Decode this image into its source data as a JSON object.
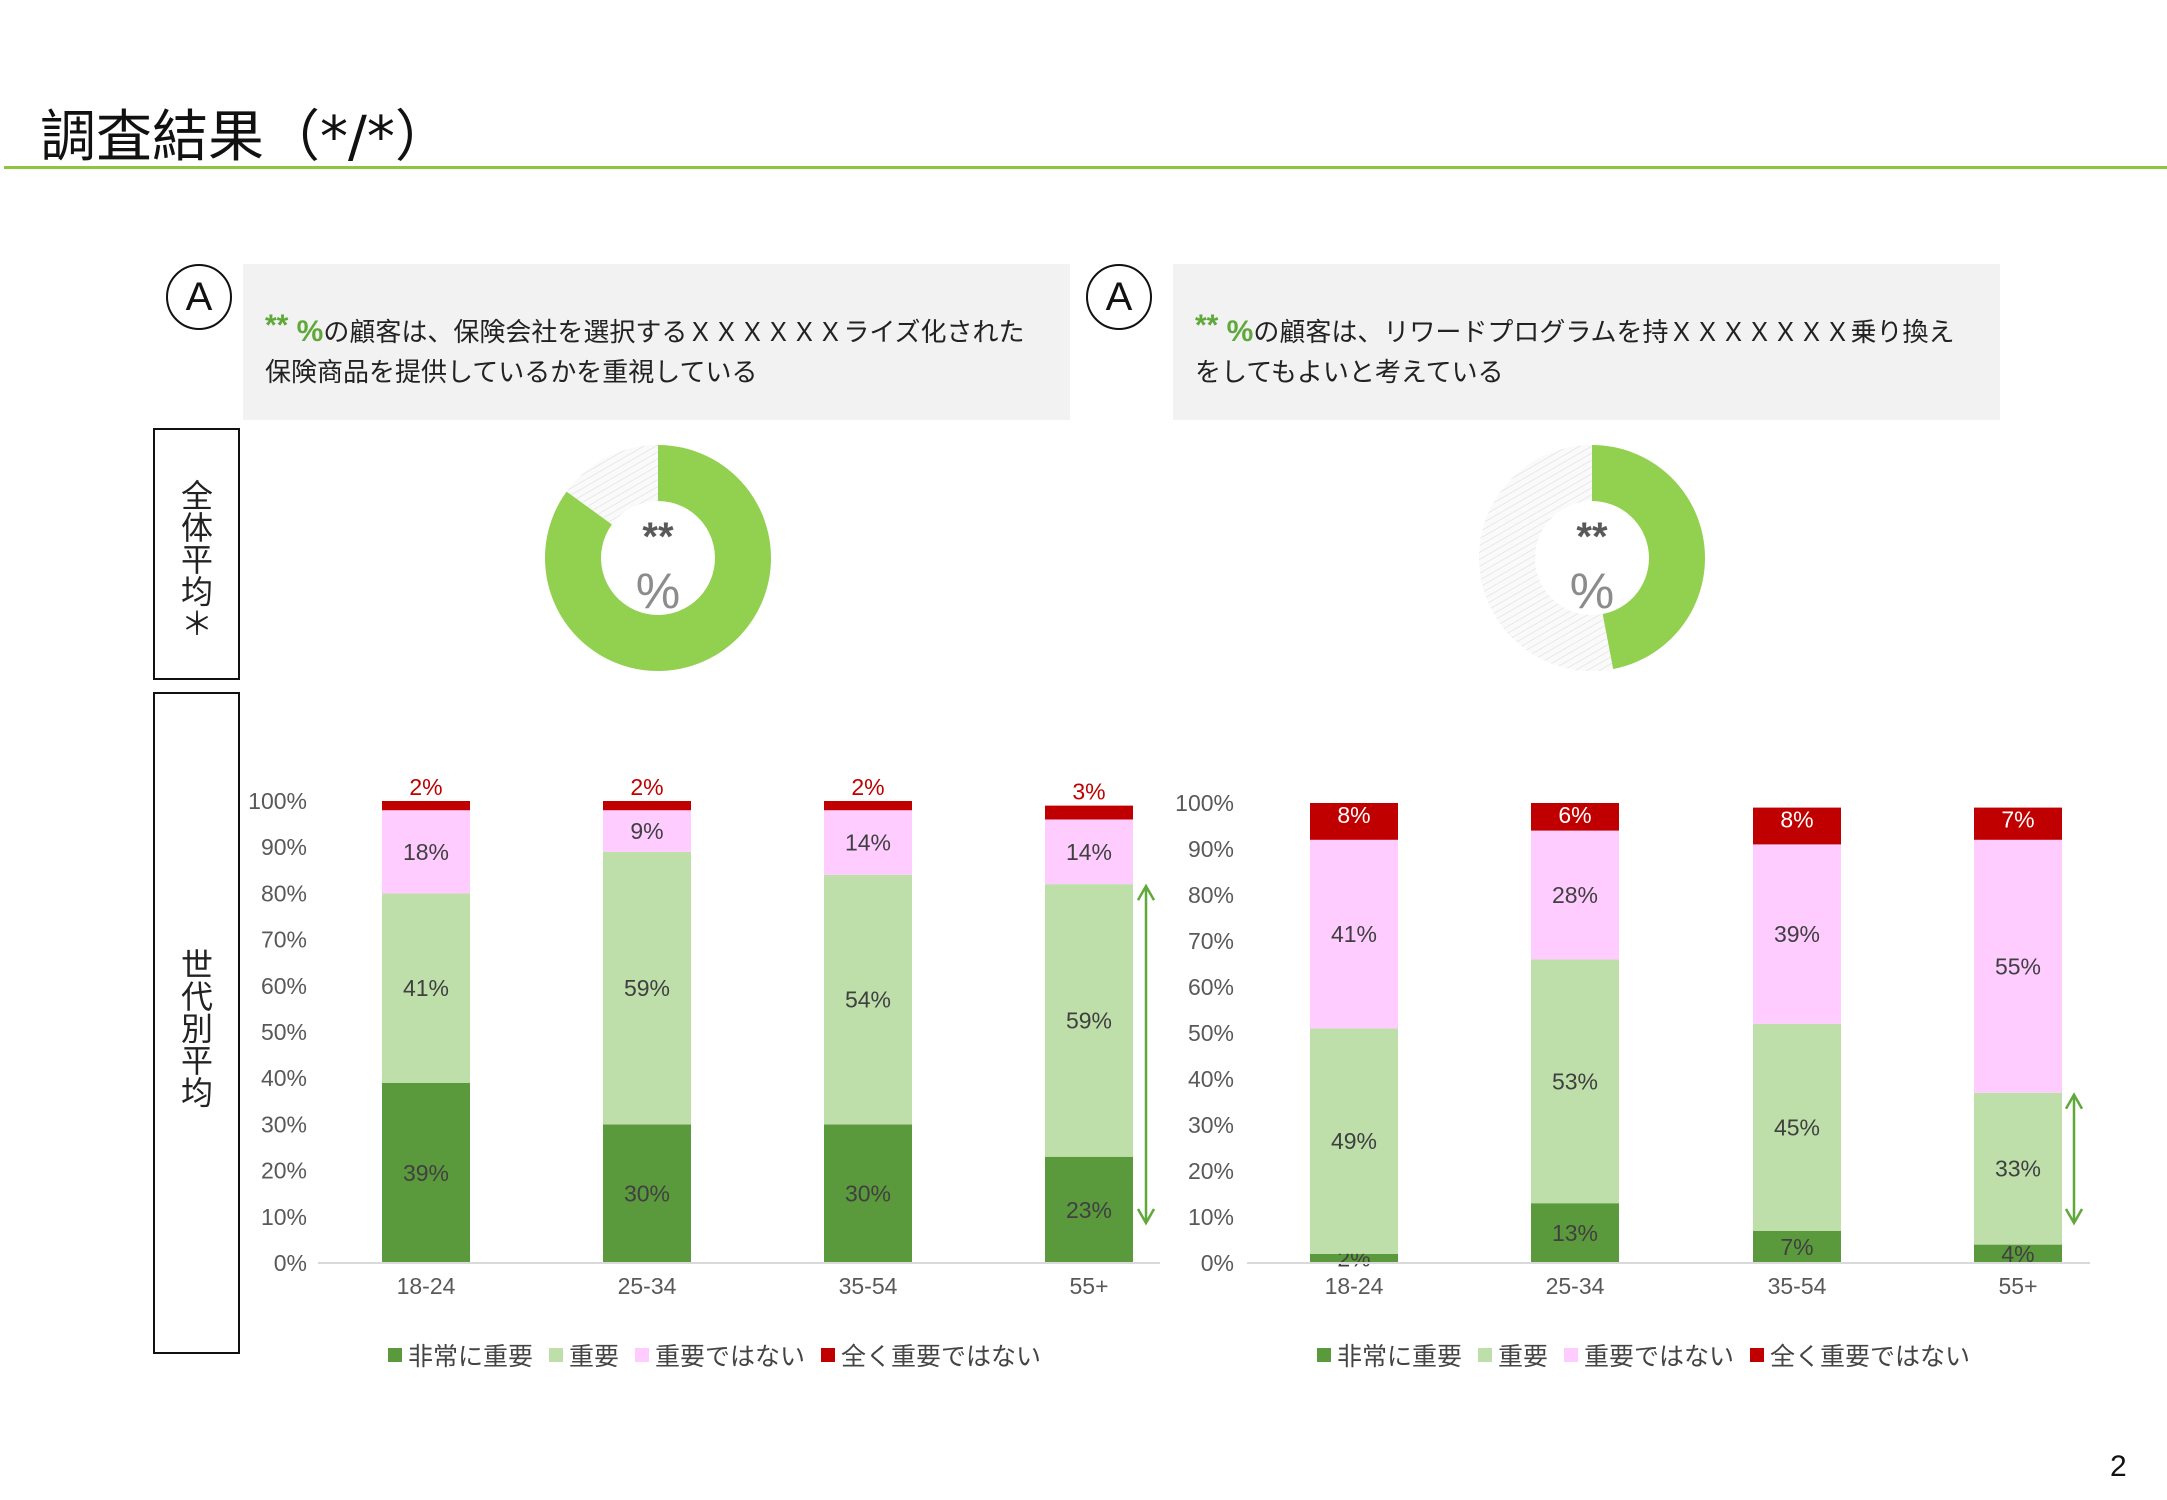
{
  "header": {
    "title": "調査結果（*/*）",
    "page_number": "2"
  },
  "colors": {
    "very_important": "#5b9a3c",
    "important": "#bedfaa",
    "not_important": "#ffccff",
    "not_at_all": "#c00000",
    "donut": "#92d050",
    "accent_line": "#8cc63f"
  },
  "row_labels": {
    "overall": "全体平均＊",
    "by_generation": "世代別平均"
  },
  "panels": [
    {
      "marker": "A",
      "stars": "**",
      "pct": "%",
      "text": "の顧客は、保険会社を選択するＸＸＸＸＸＸライズ化された保険商品を提供しているかを重視している",
      "donut": {
        "value_label": "**",
        "unit": "%",
        "fraction": 0.85
      }
    },
    {
      "marker": "A",
      "stars": "**",
      "pct": "%",
      "text": "の顧客は、リワードプログラムを持ＸＸＸＸＸＸＸ乗り換えをしてもよいと考えている",
      "donut": {
        "value_label": "**",
        "unit": "%",
        "fraction": 0.47
      }
    }
  ],
  "chart_data": [
    {
      "type": "bar",
      "stacked": true,
      "categories": [
        "18-24",
        "25-34",
        "35-54",
        "55+"
      ],
      "series": [
        {
          "name": "非常に重要",
          "values": [
            39,
            30,
            30,
            23
          ]
        },
        {
          "name": "重要",
          "values": [
            41,
            59,
            54,
            59
          ]
        },
        {
          "name": "重要ではない",
          "values": [
            18,
            9,
            14,
            14
          ]
        },
        {
          "name": "全く重要ではない",
          "values": [
            2,
            2,
            2,
            3
          ]
        }
      ],
      "yticks": [
        "0%",
        "10%",
        "20%",
        "30%",
        "40%",
        "50%",
        "60%",
        "70%",
        "80%",
        "90%",
        "100%"
      ],
      "ylim": [
        0,
        100
      ],
      "legend": "bottom",
      "annotation": "double-arrow beside 55+ spanning 重要 + 非常に重要"
    },
    {
      "type": "bar",
      "stacked": true,
      "categories": [
        "18-24",
        "25-34",
        "35-54",
        "55+"
      ],
      "series": [
        {
          "name": "非常に重要",
          "values": [
            2,
            13,
            7,
            4
          ]
        },
        {
          "name": "重要",
          "values": [
            49,
            53,
            45,
            33
          ]
        },
        {
          "name": "重要ではない",
          "values": [
            41,
            28,
            39,
            55
          ]
        },
        {
          "name": "全く重要ではない",
          "values": [
            8,
            6,
            8,
            7
          ]
        }
      ],
      "yticks": [
        "0%",
        "10%",
        "20%",
        "30%",
        "40%",
        "50%",
        "60%",
        "70%",
        "80%",
        "90%",
        "100%"
      ],
      "ylim": [
        0,
        100
      ],
      "legend": "bottom",
      "annotation": "double-arrow beside 55+ spanning 重要 + 非常に重要"
    }
  ]
}
